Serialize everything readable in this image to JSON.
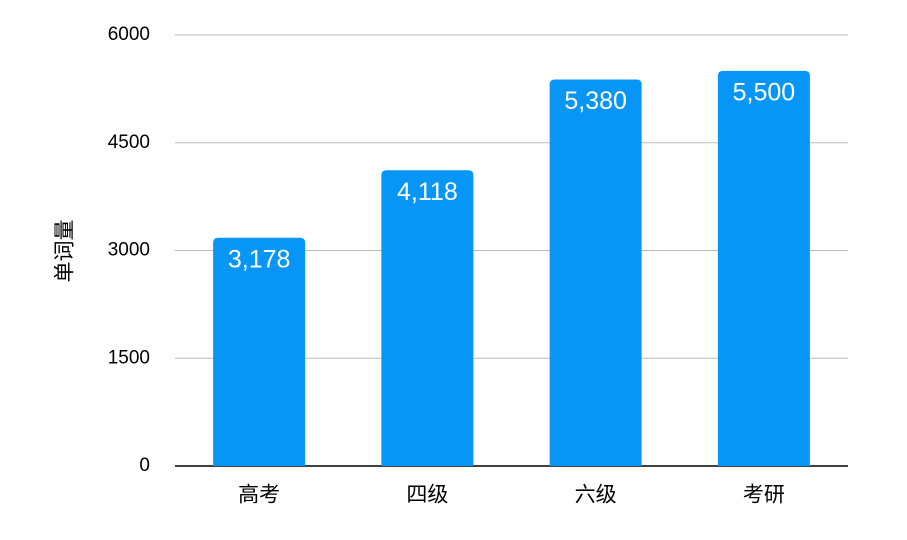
{
  "chart_data": {
    "type": "bar",
    "y_label": "单词量",
    "categories": [
      "高考",
      "四级",
      "六级",
      "考研"
    ],
    "values": [
      3178,
      4118,
      5380,
      5500
    ],
    "value_labels": [
      "3,178",
      "4,118",
      "5,380",
      "5,500"
    ],
    "color": "#0796f5",
    "ylim": [
      0,
      6000
    ],
    "yticks": [
      0,
      1500,
      3000,
      4500,
      6000
    ],
    "grid": true
  }
}
